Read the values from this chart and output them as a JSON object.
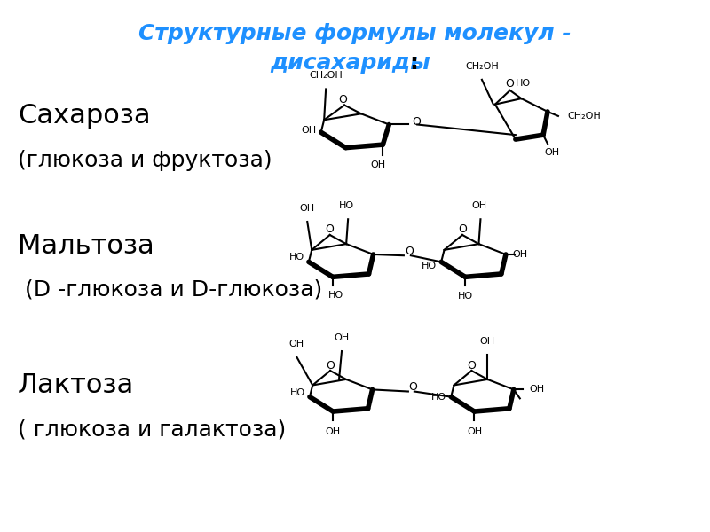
{
  "title_line1": "Структурные формулы молекул -",
  "title_line2": "дисахариды",
  "title_colon": ":",
  "title_color": "#1E90FF",
  "title_fontsize": 18,
  "bg_color": "#FFFFFF",
  "label_color": "#000000",
  "label_fontsize": 22,
  "sublabel_fontsize": 18,
  "sucrose_label": "Сахароза",
  "sucrose_sublabel": "(глюкоза и фруктоза)",
  "maltose_label": "Мальтоза",
  "maltose_sublabel": " (D -глюкоза и D-глюкоза)",
  "lactose_label": "Лактоза",
  "lactose_sublabel": "( глюкоза и галактоза)",
  "chem_color": "#000000",
  "lw_thin": 1.5,
  "lw_thick": 4.0
}
